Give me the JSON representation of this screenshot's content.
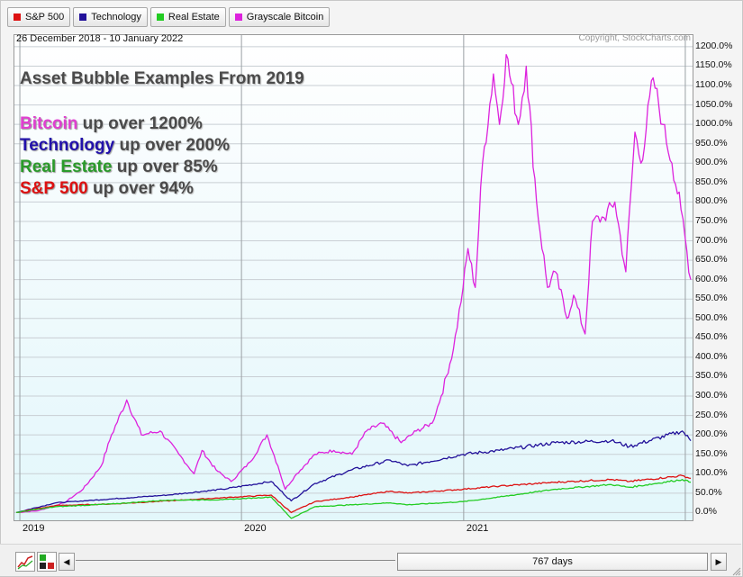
{
  "legend": {
    "items": [
      {
        "label": "S&P 500",
        "color": "#dd1111"
      },
      {
        "label": "Technology",
        "color": "#22119a"
      },
      {
        "label": "Real Estate",
        "color": "#22cc22"
      },
      {
        "label": "Grayscale Bitcoin",
        "color": "#dd22dd"
      }
    ]
  },
  "header": {
    "date_range": "26 December 2018 - 10 January 2022",
    "copyright": "Copyright, StockCharts.com"
  },
  "annotations": {
    "title": "Asset Bubble Examples From 2019",
    "lines": [
      {
        "highlight": "Bitcoin",
        "rest": " up over 1200%",
        "color": "#e040d0"
      },
      {
        "highlight": "Technology",
        "rest": " up over 200%",
        "color": "#2211aa"
      },
      {
        "highlight": "Real Estate",
        "rest": " up over 85%",
        "color": "#2a9a2a"
      },
      {
        "highlight": "S&P 500",
        "rest": " up over 94%",
        "color": "#dd1111"
      }
    ]
  },
  "footer": {
    "range_label": "767 days",
    "left_arrow": "◀",
    "right_arrow": "▶"
  },
  "chart_data": {
    "type": "line",
    "title": "",
    "xlabel": "",
    "ylabel": "",
    "x_ticks": [
      "2019",
      "2020",
      "2021"
    ],
    "y_ticks": [
      "1200.0%",
      "1150.0%",
      "1100.0%",
      "1050.0%",
      "1000.0%",
      "950.0%",
      "900.0%",
      "850.0%",
      "800.0%",
      "750.0%",
      "700.0%",
      "650.0%",
      "600.0%",
      "550.0%",
      "500.0%",
      "450.0%",
      "400.0%",
      "350.0%",
      "300.0%",
      "250.0%",
      "200.0%",
      "150.0%",
      "100.0%",
      "50.0%",
      "0.0%"
    ],
    "xlim": [
      "2018-12-26",
      "2022-01-10"
    ],
    "ylim": [
      -20,
      1230
    ],
    "grid": true,
    "legend_position": "top-left",
    "series": [
      {
        "name": "Grayscale Bitcoin",
        "color": "#dd22dd",
        "x": [
          "2018-12-26",
          "2019-02-01",
          "2019-03-15",
          "2019-04-15",
          "2019-05-15",
          "2019-06-01",
          "2019-06-26",
          "2019-07-20",
          "2019-08-20",
          "2019-09-20",
          "2019-10-15",
          "2019-10-28",
          "2019-11-20",
          "2019-12-15",
          "2020-01-15",
          "2020-02-12",
          "2020-03-01",
          "2020-03-13",
          "2020-04-01",
          "2020-05-01",
          "2020-06-01",
          "2020-07-01",
          "2020-07-25",
          "2020-08-20",
          "2020-09-20",
          "2020-10-15",
          "2020-11-10",
          "2020-11-25",
          "2020-12-15",
          "2020-12-31",
          "2021-01-08",
          "2021-01-20",
          "2021-02-01",
          "2021-02-19",
          "2021-03-01",
          "2021-03-12",
          "2021-04-01",
          "2021-04-14",
          "2021-05-01",
          "2021-05-19",
          "2021-06-01",
          "2021-06-20",
          "2021-07-01",
          "2021-07-20",
          "2021-08-01",
          "2021-08-20",
          "2021-09-07",
          "2021-09-25",
          "2021-10-10",
          "2021-10-20",
          "2021-11-09",
          "2021-11-25",
          "2021-12-10",
          "2021-12-25",
          "2022-01-10"
        ],
        "values": [
          0,
          5,
          25,
          60,
          120,
          200,
          290,
          200,
          210,
          150,
          100,
          160,
          110,
          80,
          130,
          200,
          120,
          60,
          100,
          150,
          160,
          150,
          210,
          230,
          180,
          210,
          230,
          300,
          420,
          580,
          680,
          580,
          900,
          1130,
          1000,
          1180,
          1000,
          1150,
          800,
          580,
          620,
          500,
          560,
          460,
          750,
          760,
          800,
          620,
          980,
          900,
          1120,
          1000,
          900,
          780,
          600
        ]
      },
      {
        "name": "Technology",
        "color": "#22119a",
        "x": [
          "2018-12-26",
          "2019-03-01",
          "2019-06-01",
          "2019-09-01",
          "2019-12-01",
          "2020-02-19",
          "2020-03-23",
          "2020-05-01",
          "2020-07-01",
          "2020-09-02",
          "2020-10-01",
          "2020-12-31",
          "2021-03-01",
          "2021-06-01",
          "2021-09-01",
          "2021-10-01",
          "2021-12-27",
          "2022-01-10"
        ],
        "values": [
          0,
          25,
          35,
          45,
          60,
          80,
          30,
          75,
          110,
          135,
          120,
          150,
          160,
          180,
          185,
          170,
          210,
          185
        ]
      },
      {
        "name": "S&P 500",
        "color": "#dd1111",
        "x": [
          "2018-12-26",
          "2019-03-01",
          "2019-06-01",
          "2019-09-01",
          "2019-12-01",
          "2020-02-19",
          "2020-03-23",
          "2020-05-01",
          "2020-07-01",
          "2020-09-02",
          "2020-10-01",
          "2020-12-31",
          "2021-03-01",
          "2021-06-01",
          "2021-09-01",
          "2021-10-01",
          "2021-12-27",
          "2022-01-10"
        ],
        "values": [
          0,
          18,
          22,
          30,
          38,
          45,
          0,
          28,
          40,
          55,
          50,
          60,
          68,
          78,
          85,
          80,
          95,
          88
        ]
      },
      {
        "name": "Real Estate",
        "color": "#22cc22",
        "x": [
          "2018-12-26",
          "2019-03-01",
          "2019-06-01",
          "2019-09-01",
          "2019-12-01",
          "2020-02-19",
          "2020-03-23",
          "2020-05-01",
          "2020-07-01",
          "2020-09-02",
          "2020-10-01",
          "2020-12-31",
          "2021-03-01",
          "2021-06-01",
          "2021-09-01",
          "2021-10-01",
          "2021-12-27",
          "2022-01-10"
        ],
        "values": [
          0,
          15,
          22,
          32,
          33,
          40,
          -15,
          15,
          20,
          25,
          20,
          28,
          40,
          60,
          72,
          65,
          85,
          78
        ]
      }
    ]
  }
}
